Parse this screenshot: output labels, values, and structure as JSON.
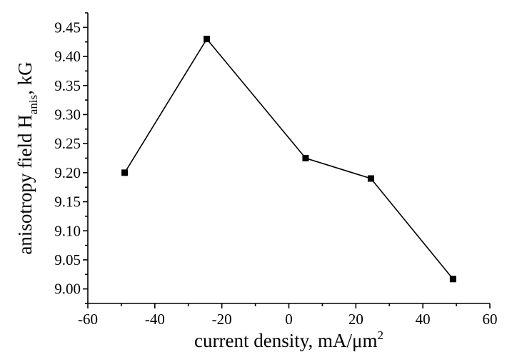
{
  "chart_data": {
    "type": "line",
    "title": "",
    "xlabel": {
      "main": "current density, mA/μm",
      "sup": "2"
    },
    "ylabel": {
      "main": "anisotropy field H",
      "sub": "anis",
      "tail": ", kG"
    },
    "xlim": [
      -60,
      60
    ],
    "ylim": [
      8.975,
      9.475
    ],
    "xticks": [
      -60,
      -40,
      -20,
      0,
      20,
      40,
      60
    ],
    "xtick_labels": [
      "-60",
      "-40",
      "-20",
      "0",
      "20",
      "40",
      "60"
    ],
    "yticks": [
      9.0,
      9.05,
      9.1,
      9.15,
      9.2,
      9.25,
      9.3,
      9.35,
      9.4,
      9.45
    ],
    "ytick_labels": [
      "9.00",
      "9.05",
      "9.10",
      "9.15",
      "9.20",
      "9.25",
      "9.30",
      "9.35",
      "9.40",
      "9.45"
    ],
    "grid": false,
    "legend": "none",
    "series": [
      {
        "x": [
          -49,
          -24.5,
          5,
          24.5,
          49
        ],
        "y": [
          9.2,
          9.43,
          9.225,
          9.19,
          9.017
        ],
        "color": "#000000",
        "marker": "square"
      }
    ]
  }
}
